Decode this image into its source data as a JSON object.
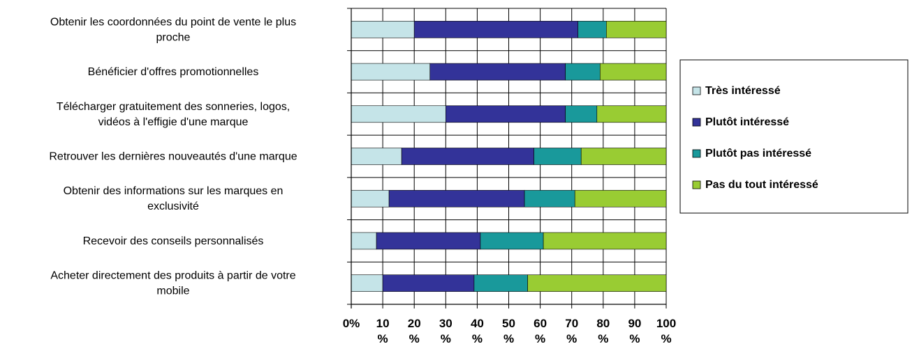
{
  "chart_data": {
    "type": "bar",
    "orientation": "horizontal",
    "stacked": "percent",
    "categories": [
      [
        "Obtenir les coordonnées du point de vente le plus",
        "proche"
      ],
      [
        "Bénéficier d'offres promotionnelles"
      ],
      [
        "Télécharger gratuitement des sonneries, logos,",
        "vidéos à l'effigie d'une marque"
      ],
      [
        "Retrouver les dernières nouveautés d'une marque"
      ],
      [
        "Obtenir des informations sur les marques en",
        "exclusivité"
      ],
      [
        "Recevoir des conseils personnalisés"
      ],
      [
        "Acheter directement des produits à partir de votre",
        "mobile"
      ]
    ],
    "series": [
      {
        "name": "Très intéressé",
        "color": "#c5e4e8",
        "values": [
          20,
          25,
          30,
          16,
          12,
          8,
          10
        ]
      },
      {
        "name": "Plutôt intéressé",
        "color": "#333399",
        "values": [
          52,
          43,
          38,
          42,
          43,
          33,
          29
        ]
      },
      {
        "name": "Plutôt pas intéressé",
        "color": "#19999b",
        "values": [
          9,
          11,
          10,
          15,
          16,
          20,
          17
        ]
      },
      {
        "name": "Pas du tout intéressé",
        "color": "#99cc33",
        "values": [
          19,
          21,
          22,
          27,
          29,
          39,
          44
        ]
      }
    ],
    "xlim": [
      0,
      100
    ],
    "xticks": [
      [
        "0%"
      ],
      [
        "10",
        "%"
      ],
      [
        "20",
        "%"
      ],
      [
        "30",
        "%"
      ],
      [
        "40",
        "%"
      ],
      [
        "50",
        "%"
      ],
      [
        "60",
        "%"
      ],
      [
        "70",
        "%"
      ],
      [
        "80",
        "%"
      ],
      [
        "90",
        "%"
      ],
      [
        "100",
        "%"
      ]
    ],
    "grid": true,
    "legend_position": "right"
  }
}
